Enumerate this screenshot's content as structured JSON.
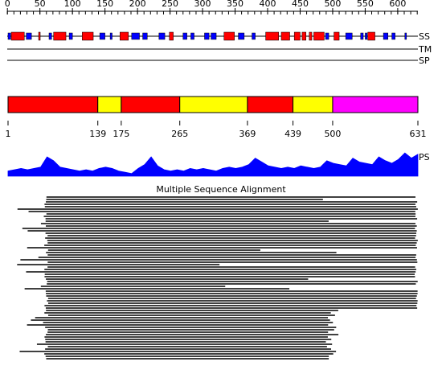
{
  "ruler": {
    "ticks": [
      0,
      50,
      100,
      150,
      200,
      250,
      300,
      350,
      400,
      450,
      500,
      550,
      600
    ]
  },
  "tracks": {
    "ss": "SS",
    "tm": "TM",
    "sp": "SP",
    "ps": "PS"
  },
  "ss_elements": {
    "helix_color": "#ff0000",
    "strand_color": "#0000ff",
    "helices": [
      [
        6,
        26
      ],
      [
        48,
        50
      ],
      [
        71,
        90
      ],
      [
        115,
        132
      ],
      [
        173,
        186
      ],
      [
        249,
        255
      ],
      [
        333,
        349
      ],
      [
        397,
        417
      ],
      [
        421,
        434
      ],
      [
        441,
        450
      ],
      [
        453,
        459
      ],
      [
        464,
        468
      ],
      [
        471,
        487
      ],
      [
        502,
        510
      ],
      [
        554,
        565
      ]
    ],
    "strands": [
      [
        1,
        5
      ],
      [
        29,
        37
      ],
      [
        64,
        68
      ],
      [
        95,
        100
      ],
      [
        142,
        150
      ],
      [
        158,
        161
      ],
      [
        191,
        203
      ],
      [
        208,
        215
      ],
      [
        233,
        242
      ],
      [
        270,
        276
      ],
      [
        282,
        287
      ],
      [
        303,
        310
      ],
      [
        313,
        321
      ],
      [
        355,
        364
      ],
      [
        376,
        381
      ],
      [
        489,
        494
      ],
      [
        520,
        530
      ],
      [
        543,
        547
      ],
      [
        550,
        553
      ],
      [
        578,
        585
      ],
      [
        591,
        596
      ],
      [
        611,
        613
      ]
    ]
  },
  "domains": {
    "boundaries": [
      1,
      139,
      175,
      265,
      369,
      439,
      500,
      631
    ],
    "colors": [
      "#ff0000",
      "#ffff00",
      "#ff0000",
      "#ffff00",
      "#ff0000",
      "#ffff00",
      "#ff00ff"
    ]
  },
  "ps_profile": {
    "color": "#0000ff",
    "step": 10,
    "values": [
      0.2,
      0.25,
      0.3,
      0.25,
      0.3,
      0.35,
      0.75,
      0.6,
      0.35,
      0.3,
      0.25,
      0.2,
      0.25,
      0.2,
      0.3,
      0.35,
      0.3,
      0.2,
      0.15,
      0.1,
      0.3,
      0.45,
      0.75,
      0.4,
      0.25,
      0.2,
      0.25,
      0.2,
      0.3,
      0.25,
      0.3,
      0.25,
      0.2,
      0.3,
      0.35,
      0.3,
      0.35,
      0.45,
      0.7,
      0.55,
      0.4,
      0.35,
      0.3,
      0.35,
      0.3,
      0.4,
      0.35,
      0.3,
      0.35,
      0.6,
      0.5,
      0.45,
      0.4,
      0.7,
      0.55,
      0.5,
      0.45,
      0.75,
      0.6,
      0.5,
      0.65,
      0.9,
      0.7,
      0.85
    ]
  },
  "msa_title": "Multiple Sequence Alignment"
}
